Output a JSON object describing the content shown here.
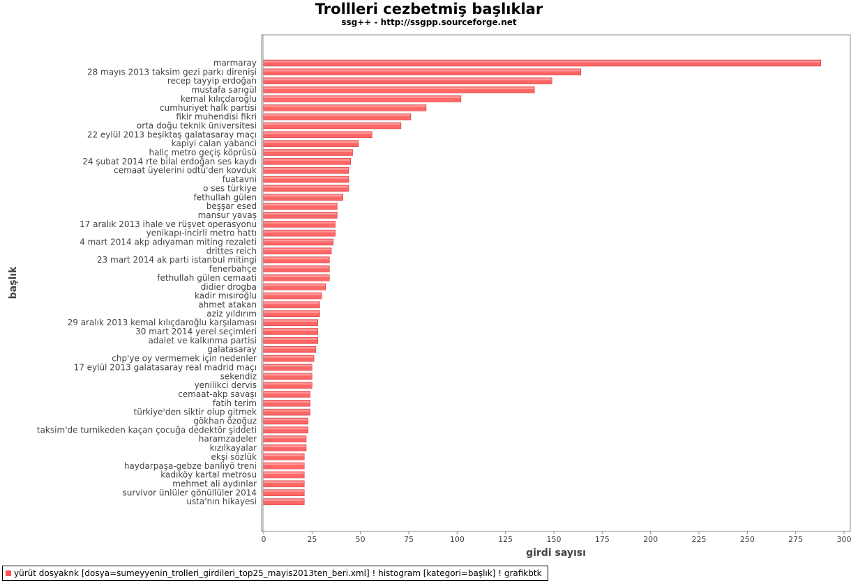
{
  "title": "Trollleri cezbetmiş başlıklar",
  "subtitle": "ssg++ - http://ssgpp.sourceforge.net",
  "legend": {
    "label": "yürüt dosyaknk [dosya=sumeyyenin_trolleri_girdileri_top25_mayis2013ten_beri.xml] ! histogram [kategori=başlık] ! grafikbtk",
    "color": "#ff5555"
  },
  "colors": {
    "bar": "#ff6666",
    "bar_top": "#ff9999",
    "bar_edge": "#cc3333",
    "axis": "#888888",
    "frame": "#888888"
  },
  "chart_data": {
    "type": "bar",
    "orientation": "horizontal",
    "xlabel": "girdi sayısı",
    "ylabel": "başlık",
    "xlim": [
      0,
      300
    ],
    "xticks": [
      0,
      25,
      50,
      75,
      100,
      125,
      150,
      175,
      200,
      225,
      250,
      275,
      300
    ],
    "grid": false,
    "legend_position": "bottom-left",
    "categories": [
      "marmaray",
      "28 mayıs 2013 taksim gezi parkı direnişi",
      "recep tayyip erdoğan",
      "mustafa sarıgül",
      "kemal kılıçdaroğlu",
      "cumhuriyet halk partisi",
      "fikir muhendisi fikri",
      "orta doğu teknik üniversitesi",
      "22 eylül 2013 beşiktaş galatasaray maçı",
      "kapiyi calan yabanci",
      "haliç metro geçiş köprüsü",
      "24 şubat 2014 rte bilal erdoğan ses kaydı",
      "cemaat üyelerini odtü'den kovduk",
      "fuatavni",
      "o ses türkiye",
      "fethullah gülen",
      "beşşar esed",
      "mansur yavaş",
      "17 aralık 2013 ihale ve rüşvet operasyonu",
      "yenikapı-incirli metro hattı",
      "4 mart 2014 akp adıyaman miting rezaleti",
      "drittes reich",
      "23 mart 2014 ak parti istanbul mitingi",
      "fenerbahçe",
      "fethullah gülen cemaati",
      "didier drogba",
      "kadir mısıroğlu",
      "ahmet atakan",
      "aziz yıldırım",
      "29 aralık 2013 kemal kılıçdaroğlu karşılaması",
      "30 mart 2014 yerel seçimleri",
      "adalet ve kalkınma partisi",
      "galatasaray",
      "chp'ye oy vermemek için nedenler",
      "17 eylül 2013 galatasaray real madrid maçı",
      "sekendiz",
      "yenilikci dervis",
      "cemaat-akp savaşı",
      "fatih terim",
      "türkiye'den siktir olup gitmek",
      "gökhan özoğuz",
      "taksim'de turnikeden kaçan çocuğa dedektör şiddeti",
      "haramzadeler",
      "kızılkayalar",
      "ekşi sözlük",
      "haydarpaşa-gebze banliyö treni",
      "kadıköy kartal metrosu",
      "mehmet ali aydınlar",
      "survivor ünlüler gönüllüler 2014",
      "usta'nın hikayesi"
    ],
    "values": [
      288,
      164,
      149,
      140,
      102,
      84,
      76,
      71,
      56,
      49,
      46,
      45,
      44,
      44,
      44,
      41,
      38,
      38,
      37,
      37,
      36,
      35,
      34,
      34,
      34,
      32,
      30,
      29,
      29,
      28,
      28,
      28,
      27,
      26,
      25,
      25,
      25,
      24,
      24,
      24,
      23,
      23,
      22,
      22,
      21,
      21,
      21,
      21,
      21,
      21
    ]
  }
}
